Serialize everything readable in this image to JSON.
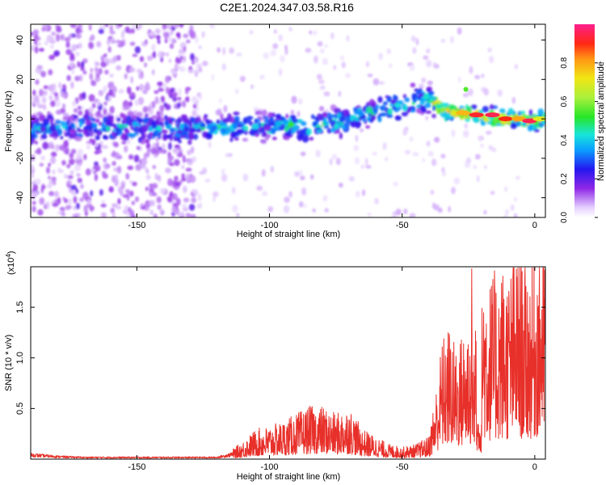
{
  "title": "C2E1.2024.347.03.58.R16",
  "chart_data": [
    {
      "type": "heatmap",
      "xlabel": "Height of straight line (km)",
      "ylabel": "Frequency (Hz)",
      "xlim": [
        -190,
        4
      ],
      "ylim": [
        -50,
        48
      ],
      "xticks": [
        -150,
        -100,
        -50,
        0
      ],
      "xtick_labels": [
        "-150",
        "-100",
        "-50",
        "0"
      ],
      "yticks": [
        -40,
        -20,
        0,
        20,
        40
      ],
      "ytick_labels": [
        "-40",
        "-20",
        "0",
        "20",
        "40"
      ],
      "ridge_frequency": {
        "x": [
          -190,
          -170,
          -150,
          -130,
          -110,
          -100,
          -90,
          -85,
          -75,
          -65,
          -55,
          -45,
          -40,
          -35,
          -30,
          -20,
          -10,
          0,
          3
        ],
        "y": [
          -5,
          -4,
          -5,
          -5,
          -4,
          -4,
          -3,
          -5,
          -2,
          2,
          5,
          9,
          11,
          4,
          3,
          2,
          0,
          -1,
          0
        ]
      },
      "colorbar": {
        "label": "Normalized spectral amplitude",
        "range": [
          0,
          1
        ],
        "ticks": [
          0.0,
          0.2,
          0.4,
          0.6,
          0.8
        ],
        "tick_labels": [
          "0.0",
          "0.2",
          "0.4",
          "0.6",
          "0.8"
        ]
      }
    },
    {
      "type": "line",
      "xlabel": "Height of straight line (km)",
      "ylabel": "SNR (10 * v/v)",
      "scale_label": "(x10",
      "scale_exponent": "4",
      "scale_close": ")",
      "xlim": [
        -190,
        4
      ],
      "ylim": [
        0,
        1.9
      ],
      "xticks": [
        -150,
        -100,
        -50,
        0
      ],
      "xtick_labels": [
        "-150",
        "-100",
        "-50",
        "0"
      ],
      "yticks": [
        0.5,
        1.0,
        1.5
      ],
      "ytick_labels": [
        "0.5",
        "1.0",
        "1.5"
      ],
      "color": "#e8302a",
      "series": [
        {
          "x": [
            -190,
            -180,
            -170,
            -160,
            -150,
            -140,
            -130,
            -120,
            -115,
            -110,
            -105,
            -100,
            -95,
            -90,
            -85,
            -80,
            -75,
            -70,
            -65,
            -60,
            -55,
            -50,
            -45,
            -40,
            -37,
            -35,
            -32,
            -30,
            -27,
            -25,
            -23,
            -21,
            -20,
            -17,
            -15,
            -12,
            -10,
            -7,
            -5,
            -2,
            0,
            2,
            4
          ],
          "y": [
            0.05,
            0.03,
            0.02,
            0.02,
            0.02,
            0.02,
            0.02,
            0.02,
            0.05,
            0.12,
            0.2,
            0.22,
            0.25,
            0.3,
            0.35,
            0.35,
            0.3,
            0.35,
            0.2,
            0.15,
            0.1,
            0.08,
            0.1,
            0.15,
            0.5,
            0.8,
            0.9,
            0.75,
            0.85,
            0.95,
            0.8,
            1.2,
            1.4,
            1.2,
            1.25,
            1.3,
            1.25,
            1.4,
            1.35,
            1.3,
            1.4,
            1.5,
            1.6
          ]
        }
      ]
    }
  ]
}
